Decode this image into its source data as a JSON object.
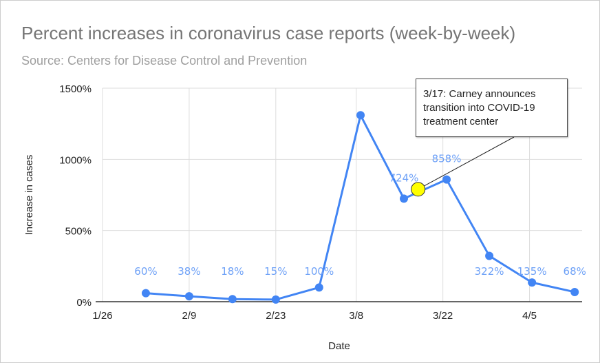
{
  "chart_data": {
    "type": "line",
    "title": "Percent increases in coronavirus case reports (week-by-week)",
    "subtitle": "Source: Centers for Disease Control and Prevention",
    "xlabel": "Date",
    "ylabel": "Increase in cases",
    "ylim": [
      0,
      1500
    ],
    "yticks": [
      "0%",
      "500%",
      "1000%",
      "1500%"
    ],
    "ytick_values": [
      0,
      500,
      1000,
      1500
    ],
    "xticks": [
      "1/26",
      "2/9",
      "2/23",
      "3/8",
      "3/22",
      "4/5"
    ],
    "xtick_days": [
      0,
      14,
      28,
      41,
      55,
      69
    ],
    "x_domain_days": [
      0,
      77.5
    ],
    "grid": true,
    "series": [
      {
        "name": "Increase in cases",
        "color": "#4285f4",
        "x": [
          "2/2",
          "2/9",
          "2/16",
          "2/23",
          "3/1",
          "3/8",
          "3/15",
          "3/22",
          "3/29",
          "4/5",
          "4/12"
        ],
        "x_days": [
          7,
          14,
          21,
          28,
          35,
          41.7,
          48.7,
          55.6,
          62.5,
          69.4,
          76.3
        ],
        "values": [
          60,
          38,
          18,
          15,
          100,
          1310,
          724,
          858,
          322,
          135,
          68
        ],
        "labels": [
          "60%",
          "38%",
          "18%",
          "15%",
          "100%",
          "",
          "724%",
          "858%",
          "322%",
          "135%",
          "68%"
        ]
      }
    ],
    "annotation": {
      "x": "3/17",
      "x_day": 51,
      "value": 790,
      "color": "#ffff00",
      "text_lines": [
        "3/17: Carney announces",
        "transition into COVID-19",
        "treatment center"
      ]
    }
  }
}
